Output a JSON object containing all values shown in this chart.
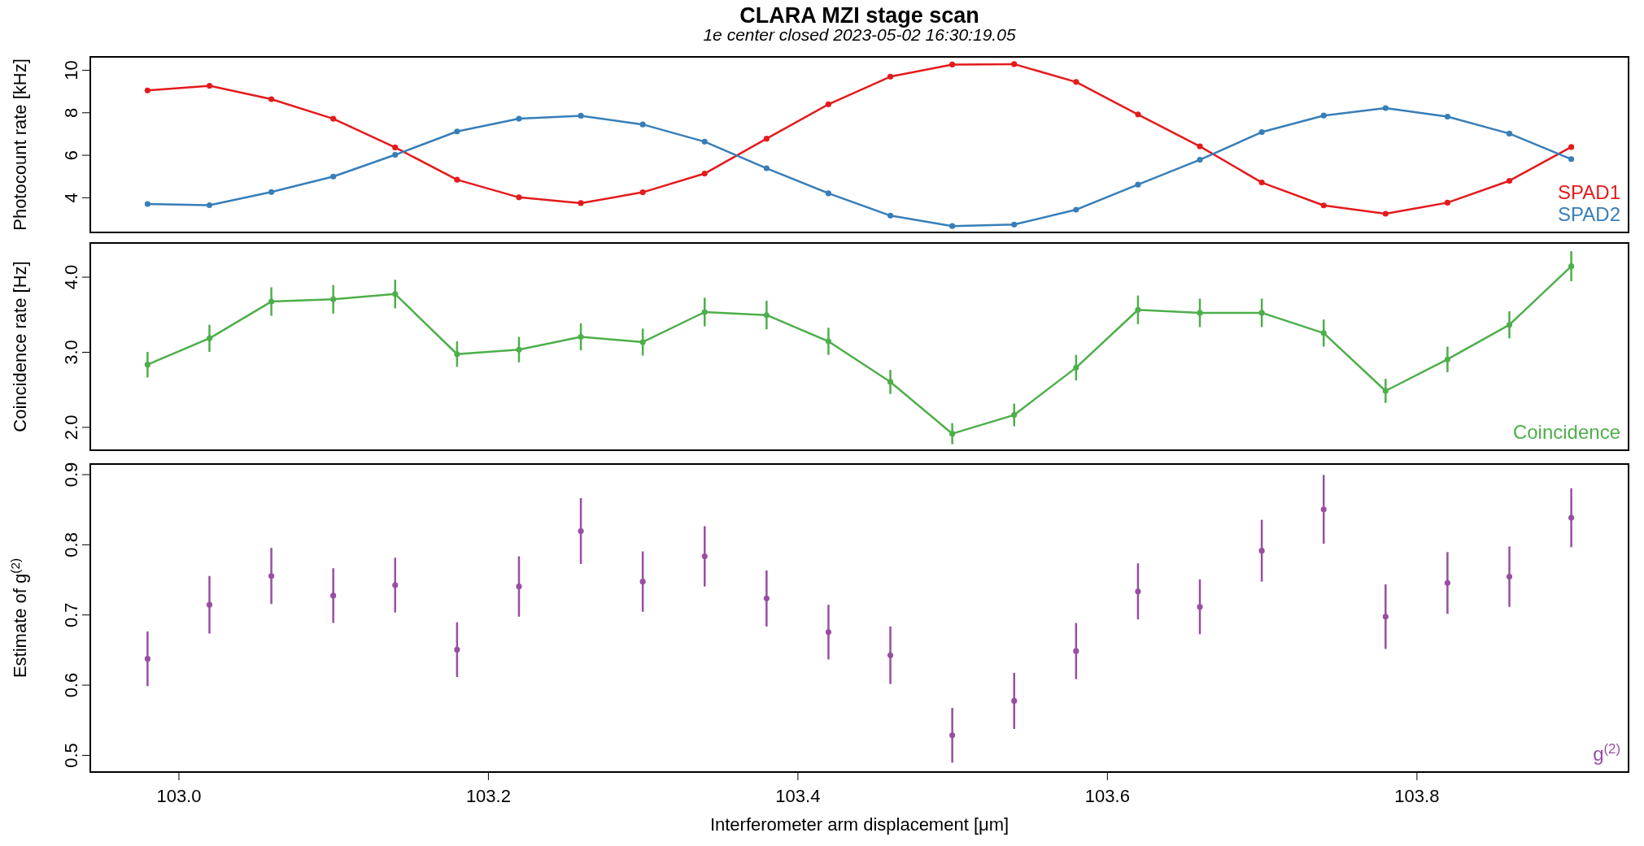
{
  "chart_data": [
    {
      "type": "line",
      "title": "CLARA MZI stage scan",
      "subtitle": "1e center closed 2023-05-02 16:30:19.05",
      "ylabel": "Photocount rate [kHz]",
      "x": [
        102.98,
        103.02,
        103.06,
        103.1,
        103.14,
        103.18,
        103.22,
        103.26,
        103.3,
        103.34,
        103.38,
        103.42,
        103.46,
        103.5,
        103.54,
        103.58,
        103.62,
        103.66,
        103.7,
        103.74,
        103.78,
        103.82,
        103.86,
        103.9
      ],
      "series": [
        {
          "name": "SPAD1",
          "color": "#e41a1c",
          "values": [
            9.03,
            9.25,
            8.62,
            7.7,
            6.35,
            4.83,
            4.0,
            3.73,
            4.24,
            5.12,
            6.76,
            8.38,
            9.68,
            10.25,
            10.27,
            9.43,
            7.9,
            6.4,
            4.7,
            3.62,
            3.23,
            3.75,
            4.78,
            6.37
          ]
        },
        {
          "name": "SPAD2",
          "color": "#377eb8",
          "values": [
            3.69,
            3.63,
            4.25,
            4.98,
            6.0,
            7.1,
            7.7,
            7.84,
            7.43,
            6.62,
            5.37,
            4.19,
            3.14,
            2.65,
            2.72,
            3.42,
            4.6,
            5.77,
            7.07,
            7.85,
            8.2,
            7.8,
            7.0,
            5.8
          ]
        }
      ],
      "xlim": [
        102.943,
        103.937
      ],
      "ylim": [
        2.35,
        10.61
      ],
      "yticks": [
        4,
        6,
        8,
        10
      ],
      "tick_labels": "y",
      "legend": "bottom right",
      "marker": "circle"
    },
    {
      "type": "line",
      "ylabel": "Coincidence rate [Hz]",
      "x": [
        102.98,
        103.02,
        103.06,
        103.1,
        103.14,
        103.18,
        103.22,
        103.26,
        103.3,
        103.34,
        103.38,
        103.42,
        103.46,
        103.5,
        103.54,
        103.58,
        103.62,
        103.66,
        103.7,
        103.74,
        103.78,
        103.82,
        103.86,
        103.9
      ],
      "series": [
        {
          "name": "Coincidence",
          "color": "#4daf4a",
          "values": [
            2.83,
            3.18,
            3.67,
            3.7,
            3.77,
            2.97,
            3.03,
            3.2,
            3.13,
            3.53,
            3.49,
            3.14,
            2.6,
            1.91,
            2.16,
            2.79,
            3.56,
            3.52,
            3.52,
            3.25,
            2.48,
            2.9,
            3.36,
            4.14
          ],
          "errors": [
            0.17,
            0.18,
            0.19,
            0.19,
            0.19,
            0.17,
            0.17,
            0.18,
            0.18,
            0.19,
            0.19,
            0.18,
            0.16,
            0.14,
            0.15,
            0.17,
            0.19,
            0.19,
            0.19,
            0.18,
            0.16,
            0.17,
            0.18,
            0.2
          ]
        }
      ],
      "xlim": [
        102.943,
        103.937
      ],
      "ylim": [
        1.69,
        4.45
      ],
      "yticks": [
        {
          "value": 2,
          "label": "2.0"
        },
        {
          "value": 3,
          "label": "3.0"
        },
        {
          "value": 4,
          "label": "4.0"
        }
      ],
      "tick_labels": "y",
      "legend": "bottom right",
      "marker": "circle"
    },
    {
      "type": "scatter",
      "ylabel": "Estimate of g$^{(2)}$",
      "xlabel": "Interferometer arm displacement [μm]",
      "x": [
        102.98,
        103.02,
        103.06,
        103.1,
        103.14,
        103.18,
        103.22,
        103.26,
        103.3,
        103.34,
        103.38,
        103.42,
        103.46,
        103.5,
        103.54,
        103.58,
        103.62,
        103.66,
        103.7,
        103.74,
        103.78,
        103.82,
        103.86,
        103.9
      ],
      "series": [
        {
          "name": "g$^{(2)}$",
          "color": "#984ea3",
          "values": [
            0.637,
            0.714,
            0.755,
            0.727,
            0.742,
            0.65,
            0.74,
            0.819,
            0.747,
            0.783,
            0.723,
            0.675,
            0.642,
            0.528,
            0.577,
            0.648,
            0.733,
            0.711,
            0.791,
            0.85,
            0.697,
            0.745,
            0.754,
            0.838
          ],
          "errors": [
            0.039,
            0.041,
            0.04,
            0.039,
            0.039,
            0.039,
            0.043,
            0.047,
            0.043,
            0.043,
            0.04,
            0.039,
            0.041,
            0.039,
            0.04,
            0.04,
            0.04,
            0.039,
            0.044,
            0.049,
            0.046,
            0.044,
            0.043,
            0.042
          ]
        }
      ],
      "xlim": [
        102.943,
        103.937
      ],
      "xticks": [
        {
          "value": 103,
          "label": "103.0"
        },
        103.2,
        103.4,
        103.6,
        103.8
      ],
      "ylim": [
        0.4756,
        0.9145
      ],
      "yticks": [
        0.5,
        0.6,
        0.7,
        0.8,
        0.9
      ],
      "legend": "bottom right",
      "marker": "circle"
    }
  ]
}
